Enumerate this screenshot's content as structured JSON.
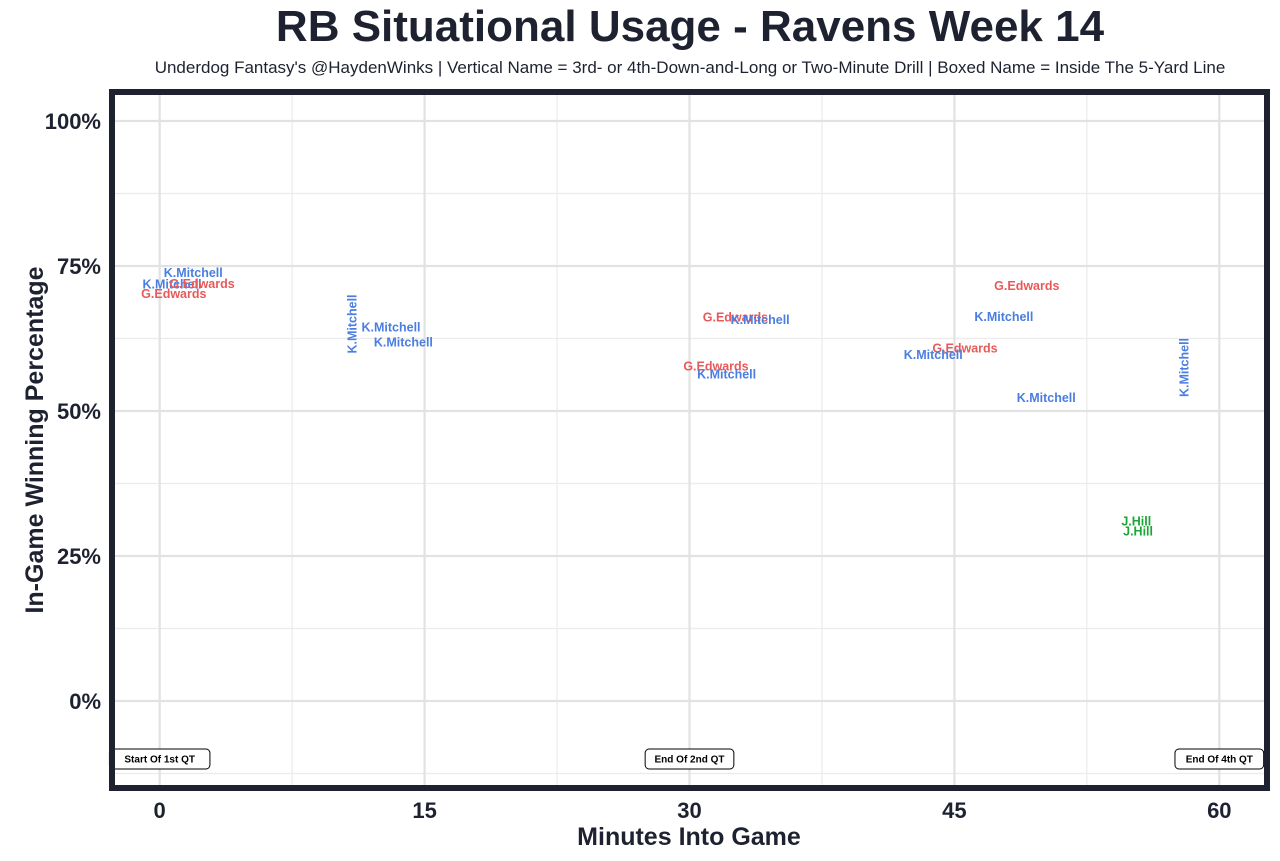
{
  "chart_data": {
    "type": "scatter",
    "title": "RB Situational Usage - Ravens Week 14",
    "subtitle": "Underdog Fantasy's @HaydenWinks | Vertical Name = 3rd- or 4th-Down-and-Long or Two-Minute Drill | Boxed Name = Inside The 5-Yard Line",
    "xlabel": "Minutes Into Game",
    "ylabel": "In-Game Winning Percentage",
    "xlim": [
      -2.7,
      62.7
    ],
    "ylim": [
      -15,
      105
    ],
    "x_ticks": [
      0,
      15,
      30,
      45,
      60
    ],
    "x_tick_labels": [
      "0",
      "15",
      "30",
      "45",
      "60"
    ],
    "y_ticks": [
      0,
      25,
      50,
      75,
      100
    ],
    "y_tick_labels": [
      "0%",
      "25%",
      "50%",
      "75%",
      "100%"
    ],
    "grid": true,
    "legend": "none",
    "colors": {
      "K.Mitchell": "#4a7ee0",
      "G.Edwards": "#e85a5a",
      "J.Hill": "#1aa636"
    },
    "points": [
      {
        "player": "K.Mitchell",
        "x": 1.9,
        "y": 73.9,
        "vertical": false
      },
      {
        "player": "K.Mitchell",
        "x": 0.7,
        "y": 71.9,
        "vertical": false
      },
      {
        "player": "G.Edwards",
        "x": 2.4,
        "y": 72.0,
        "vertical": false
      },
      {
        "player": "G.Edwards",
        "x": 0.8,
        "y": 70.3,
        "vertical": false
      },
      {
        "player": "K.Mitchell",
        "x": 10.9,
        "y": 65.0,
        "vertical": true
      },
      {
        "player": "K.Mitchell",
        "x": 13.1,
        "y": 64.5,
        "vertical": false
      },
      {
        "player": "K.Mitchell",
        "x": 13.8,
        "y": 61.9,
        "vertical": false
      },
      {
        "player": "G.Edwards",
        "x": 32.6,
        "y": 66.2,
        "vertical": false
      },
      {
        "player": "K.Mitchell",
        "x": 34.0,
        "y": 65.8,
        "vertical": false
      },
      {
        "player": "G.Edwards",
        "x": 31.5,
        "y": 57.8,
        "vertical": false
      },
      {
        "player": "K.Mitchell",
        "x": 32.1,
        "y": 56.4,
        "vertical": false
      },
      {
        "player": "G.Edwards",
        "x": 49.1,
        "y": 71.6,
        "vertical": false
      },
      {
        "player": "K.Mitchell",
        "x": 47.8,
        "y": 66.3,
        "vertical": false
      },
      {
        "player": "G.Edwards",
        "x": 45.6,
        "y": 60.9,
        "vertical": false
      },
      {
        "player": "K.Mitchell",
        "x": 43.8,
        "y": 59.7,
        "vertical": false
      },
      {
        "player": "K.Mitchell",
        "x": 50.2,
        "y": 52.3,
        "vertical": false
      },
      {
        "player": "K.Mitchell",
        "x": 58.0,
        "y": 57.5,
        "vertical": true
      },
      {
        "player": "J.Hill",
        "x": 55.3,
        "y": 31.0,
        "vertical": false
      },
      {
        "player": "J.Hill",
        "x": 55.4,
        "y": 29.3,
        "vertical": false
      }
    ],
    "annotations": [
      {
        "label": "Start Of 1st QT",
        "x": 0,
        "y": -10
      },
      {
        "label": "End Of 2nd QT",
        "x": 30,
        "y": -10
      },
      {
        "label": "End Of 4th QT",
        "x": 60,
        "y": -10
      }
    ]
  }
}
